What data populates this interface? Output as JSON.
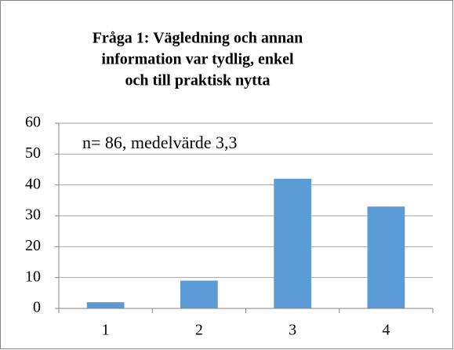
{
  "chart_data": {
    "type": "bar",
    "title": [
      "Fråga 1: Vägledning och annan",
      "information var tydlig, enkel",
      "och till praktisk nytta"
    ],
    "annotation": "n= 86, medelvärde 3,3",
    "categories": [
      "1",
      "2",
      "3",
      "4"
    ],
    "values": [
      2,
      9,
      42,
      33
    ],
    "color": "#5b9bd5",
    "ylim": [
      0,
      60
    ],
    "yticks": [
      0,
      10,
      20,
      30,
      40,
      50,
      60
    ],
    "grid": true
  }
}
